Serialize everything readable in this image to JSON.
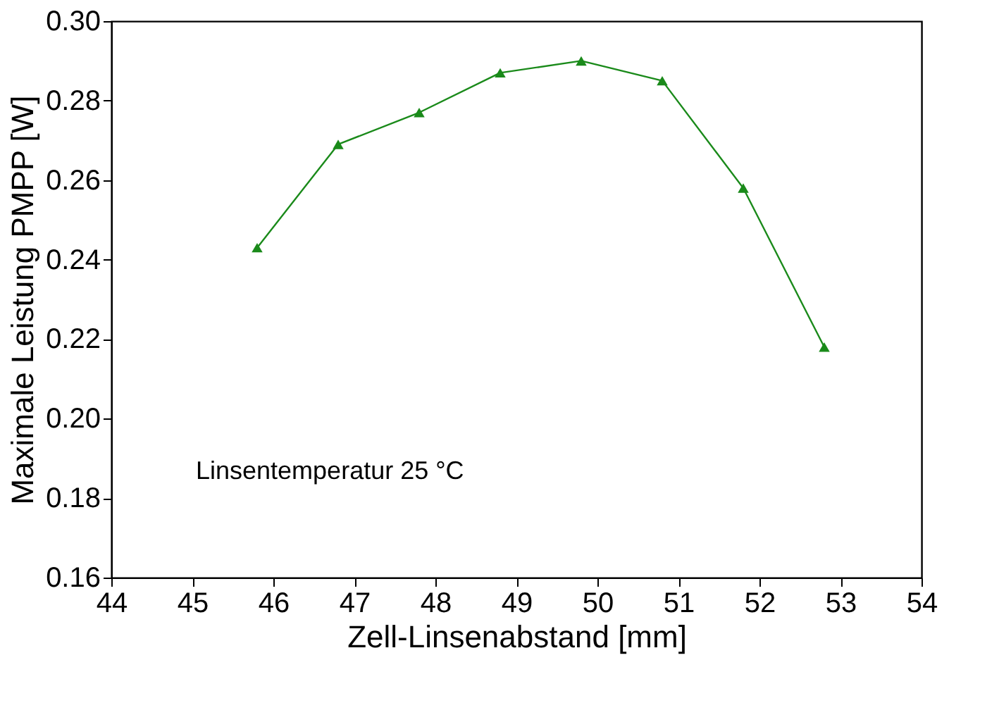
{
  "chart_data": {
    "type": "line",
    "xlabel": "Zell-Linsenabstand [mm]",
    "ylabel": "Maximale Leistung PMPP [W]",
    "x": [
      45.8,
      46.8,
      47.8,
      48.8,
      49.8,
      50.8,
      51.8,
      52.8
    ],
    "series": [
      {
        "color": "#1a8a1a",
        "values": [
          0.243,
          0.269,
          0.277,
          0.287,
          0.29,
          0.285,
          0.258,
          0.218
        ]
      }
    ],
    "xlim": [
      44,
      54
    ],
    "xticks": [
      44,
      45,
      46,
      47,
      48,
      49,
      50,
      51,
      52,
      53,
      54
    ],
    "ylim": [
      0.16,
      0.3
    ],
    "yticks": [
      {
        "value": 0.16,
        "label": "0.16"
      },
      {
        "value": 0.18,
        "label": "0.18"
      },
      {
        "value": 0.2,
        "label": "0.20"
      },
      {
        "value": 0.22,
        "label": "0.22"
      },
      {
        "value": 0.24,
        "label": "0.24"
      },
      {
        "value": 0.26,
        "label": "0.26"
      },
      {
        "value": 0.28,
        "label": "0.28"
      },
      {
        "value": 0.3,
        "label": "0.30"
      }
    ],
    "annotations": [
      "Linsentemperatur 25 °C"
    ],
    "marker": "triangle",
    "line_style": "solid",
    "grid": false
  }
}
